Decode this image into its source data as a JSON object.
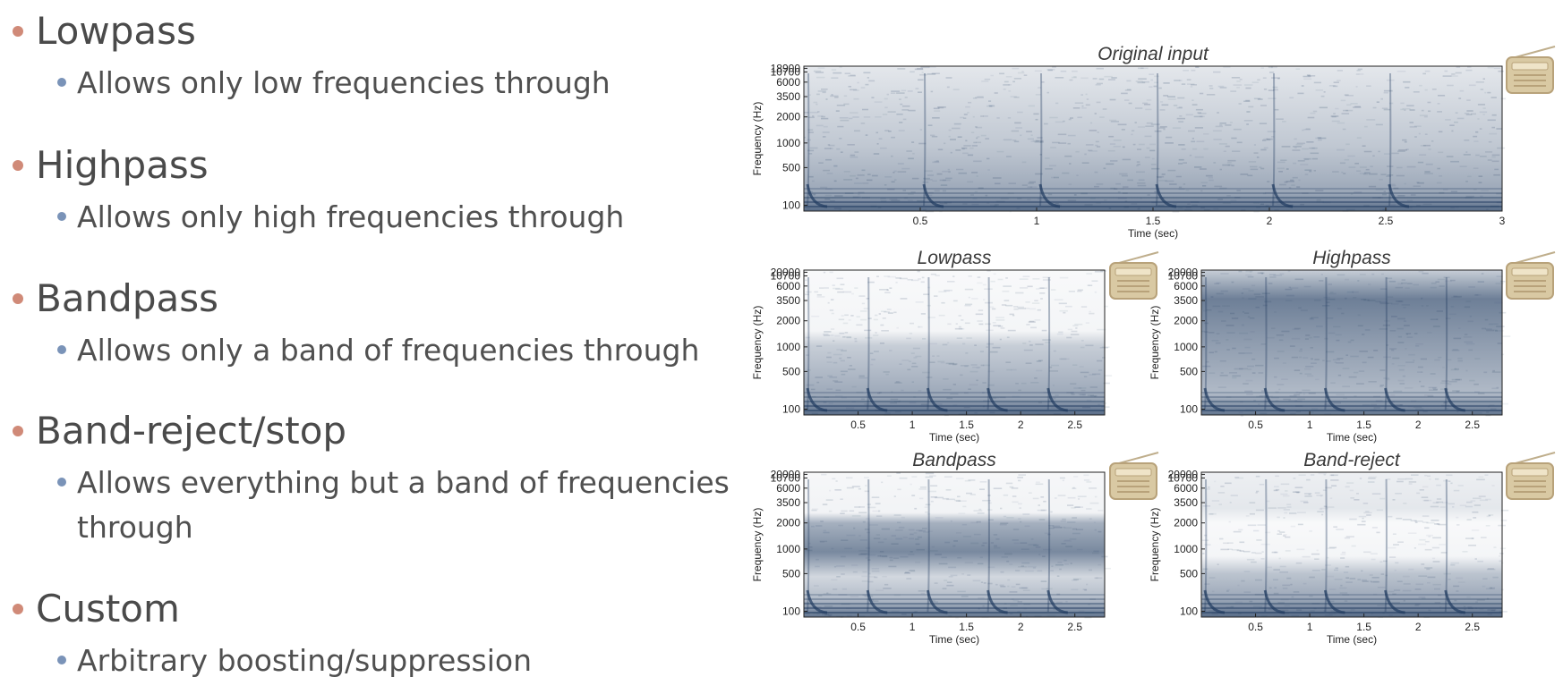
{
  "bullets": [
    {
      "title": "Lowpass",
      "sub": [
        "Allows only low frequencies through"
      ]
    },
    {
      "title": "Highpass",
      "sub": [
        "Allows only high frequencies through"
      ]
    },
    {
      "title": "Bandpass",
      "sub": [
        "Allows only a band of frequencies through"
      ]
    },
    {
      "title": "Band-reject/stop",
      "sub": [
        "Allows everything but a band of frequencies",
        "through"
      ]
    },
    {
      "title": "Custom",
      "sub": [
        "Arbitrary boosting/suppression"
      ]
    }
  ],
  "icon": "radio-icon",
  "colors": {
    "spectrogram": "#1f3a5f",
    "title_bullet": "#d08a78",
    "sub_bullet": "#7a93b8"
  },
  "chart_data": [
    {
      "type": "heatmap",
      "title": "Original input",
      "xlabel": "Time (sec)",
      "ylabel": "Frequency (Hz)",
      "xticks": [
        "0.5",
        "1",
        "1.5",
        "2",
        "2.5",
        "3"
      ],
      "yticks": [
        "100",
        "500",
        "1000",
        "2000",
        "3500",
        "6000",
        "10700",
        "18900"
      ],
      "filter": "none"
    },
    {
      "type": "heatmap",
      "title": "Lowpass",
      "xlabel": "Time (sec)",
      "ylabel": "Frequency (Hz)",
      "xticks": [
        "0.5",
        "1",
        "1.5",
        "2",
        "2.5"
      ],
      "yticks": [
        "100",
        "500",
        "1000",
        "2000",
        "3500",
        "6000",
        "10700",
        "20000"
      ],
      "filter": "lowpass"
    },
    {
      "type": "heatmap",
      "title": "Highpass",
      "xlabel": "Time (sec)",
      "ylabel": "Frequency (Hz)",
      "xticks": [
        "0.5",
        "1",
        "1.5",
        "2",
        "2.5"
      ],
      "yticks": [
        "100",
        "500",
        "1000",
        "2000",
        "3500",
        "6000",
        "10700",
        "20000"
      ],
      "filter": "highpass"
    },
    {
      "type": "heatmap",
      "title": "Bandpass",
      "xlabel": "Time (sec)",
      "ylabel": "Frequency (Hz)",
      "xticks": [
        "0.5",
        "1",
        "1.5",
        "2",
        "2.5"
      ],
      "yticks": [
        "100",
        "500",
        "1000",
        "2000",
        "3500",
        "6000",
        "10700",
        "20000"
      ],
      "filter": "bandpass"
    },
    {
      "type": "heatmap",
      "title": "Band-reject",
      "xlabel": "Time (sec)",
      "ylabel": "Frequency (Hz)",
      "xticks": [
        "0.5",
        "1",
        "1.5",
        "2",
        "2.5"
      ],
      "yticks": [
        "100",
        "500",
        "1000",
        "2000",
        "3500",
        "6000",
        "10700",
        "20000"
      ],
      "filter": "bandreject"
    }
  ]
}
